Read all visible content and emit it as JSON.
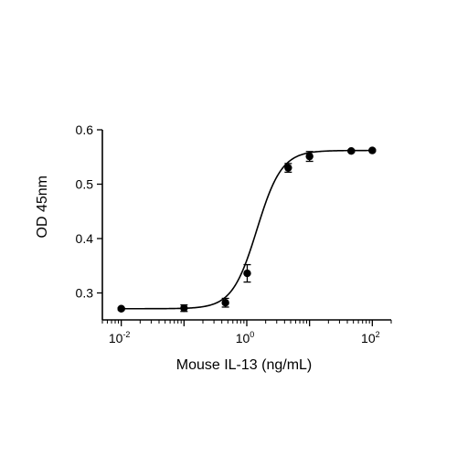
{
  "chart_data": {
    "type": "scatter",
    "x_scale": "log",
    "xlabel": "Mouse IL-13 (ng/mL)",
    "ylabel": "OD 45nm",
    "xlim": [
      0.005,
      200
    ],
    "ylim": [
      0.28,
      0.6
    ],
    "x_ticks": [
      {
        "value": 0.01,
        "base": "10",
        "exp": "-2"
      },
      {
        "value": 1,
        "base": "10",
        "exp": "0"
      },
      {
        "value": 100,
        "base": "10",
        "exp": "2"
      }
    ],
    "y_ticks": [
      {
        "value": 0.3,
        "label": "0.3"
      },
      {
        "value": 0.4,
        "label": "0.4"
      },
      {
        "value": 0.5,
        "label": "0.5"
      },
      {
        "value": 0.6,
        "label": "0.6"
      }
    ],
    "grid": false,
    "legend": "none",
    "points": [
      {
        "x": 0.01,
        "y": 0.271,
        "err": 0.002
      },
      {
        "x": 0.1,
        "y": 0.272,
        "err": 0.006
      },
      {
        "x": 0.457,
        "y": 0.282,
        "err": 0.008
      },
      {
        "x": 1.016,
        "y": 0.336,
        "err": 0.016
      },
      {
        "x": 4.571,
        "y": 0.53,
        "err": 0.008
      },
      {
        "x": 10.0,
        "y": 0.551,
        "err": 0.009
      },
      {
        "x": 46.2,
        "y": 0.561,
        "err": 0.002
      },
      {
        "x": 100.0,
        "y": 0.562,
        "err": 0.002
      }
    ],
    "fit": {
      "model": "4PL",
      "bottom": 0.271,
      "top": 0.562,
      "ec50": 1.45,
      "hill": 2.2
    }
  }
}
